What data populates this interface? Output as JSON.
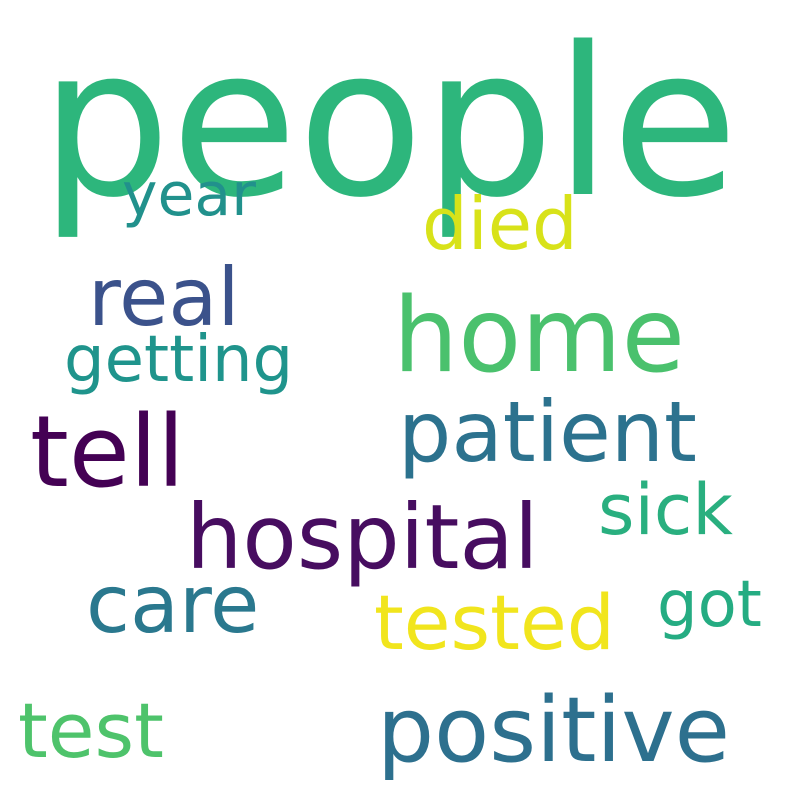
{
  "words": {
    "people": {
      "text": "people",
      "color": "#2db67c"
    },
    "year": {
      "text": "year",
      "color": "#21918c"
    },
    "died": {
      "text": "died",
      "color": "#d8e219"
    },
    "real": {
      "text": "real",
      "color": "#3b528b"
    },
    "home": {
      "text": "home",
      "color": "#4ac16d"
    },
    "getting": {
      "text": "getting",
      "color": "#1f948c"
    },
    "patient": {
      "text": "patient",
      "color": "#2c728e"
    },
    "tell": {
      "text": "tell",
      "color": "#440154"
    },
    "sick": {
      "text": "sick",
      "color": "#29af7f"
    },
    "hospital": {
      "text": "hospital",
      "color": "#470d60"
    },
    "care": {
      "text": "care",
      "color": "#2a788e"
    },
    "got": {
      "text": "got",
      "color": "#25ac82"
    },
    "tested": {
      "text": "tested",
      "color": "#f1e51d"
    },
    "test": {
      "text": "test",
      "color": "#4ec36b"
    },
    "positive": {
      "text": "positive",
      "color": "#2d708e"
    }
  }
}
